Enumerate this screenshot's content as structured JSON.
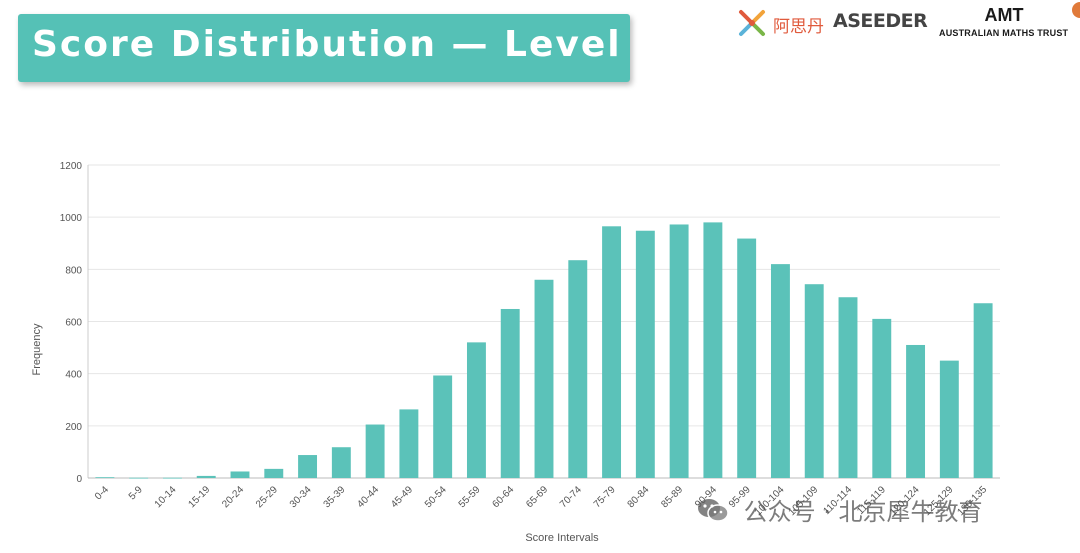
{
  "banner": {
    "title": "Score Distribution — Level B"
  },
  "logos": {
    "cn_name": "阿思丹",
    "aseeder": "ASEEDER",
    "amt": "AMT",
    "amt_full": "AUSTRALIAN MATHS TRUST"
  },
  "watermark": {
    "text": "公众号 · 北京犀牛教育"
  },
  "colors": {
    "bar": "#5bc2b9",
    "banner": "#55c1b6",
    "grid": "#e6e6e6",
    "axis_text": "#555555"
  },
  "chart_data": {
    "type": "bar",
    "title": "",
    "xlabel": "Score Intervals",
    "ylabel": "Frequency",
    "ylim": [
      0,
      1200
    ],
    "yticks": [
      0,
      200,
      400,
      600,
      800,
      1000,
      1200
    ],
    "grid": true,
    "categories": [
      "0-4",
      "5-9",
      "10-14",
      "15-19",
      "20-24",
      "25-29",
      "30-34",
      "35-39",
      "40-44",
      "45-49",
      "50-54",
      "55-59",
      "60-64",
      "65-69",
      "70-74",
      "75-79",
      "80-84",
      "85-89",
      "90-94",
      "95-99",
      "100-104",
      "105-109",
      "110-114",
      "115-119",
      "120-124",
      "125-129",
      "130-135"
    ],
    "values": [
      3,
      1,
      1,
      8,
      25,
      35,
      88,
      118,
      205,
      263,
      393,
      520,
      648,
      760,
      835,
      965,
      948,
      972,
      980,
      918,
      820,
      743,
      693,
      610,
      510,
      450,
      670
    ]
  }
}
